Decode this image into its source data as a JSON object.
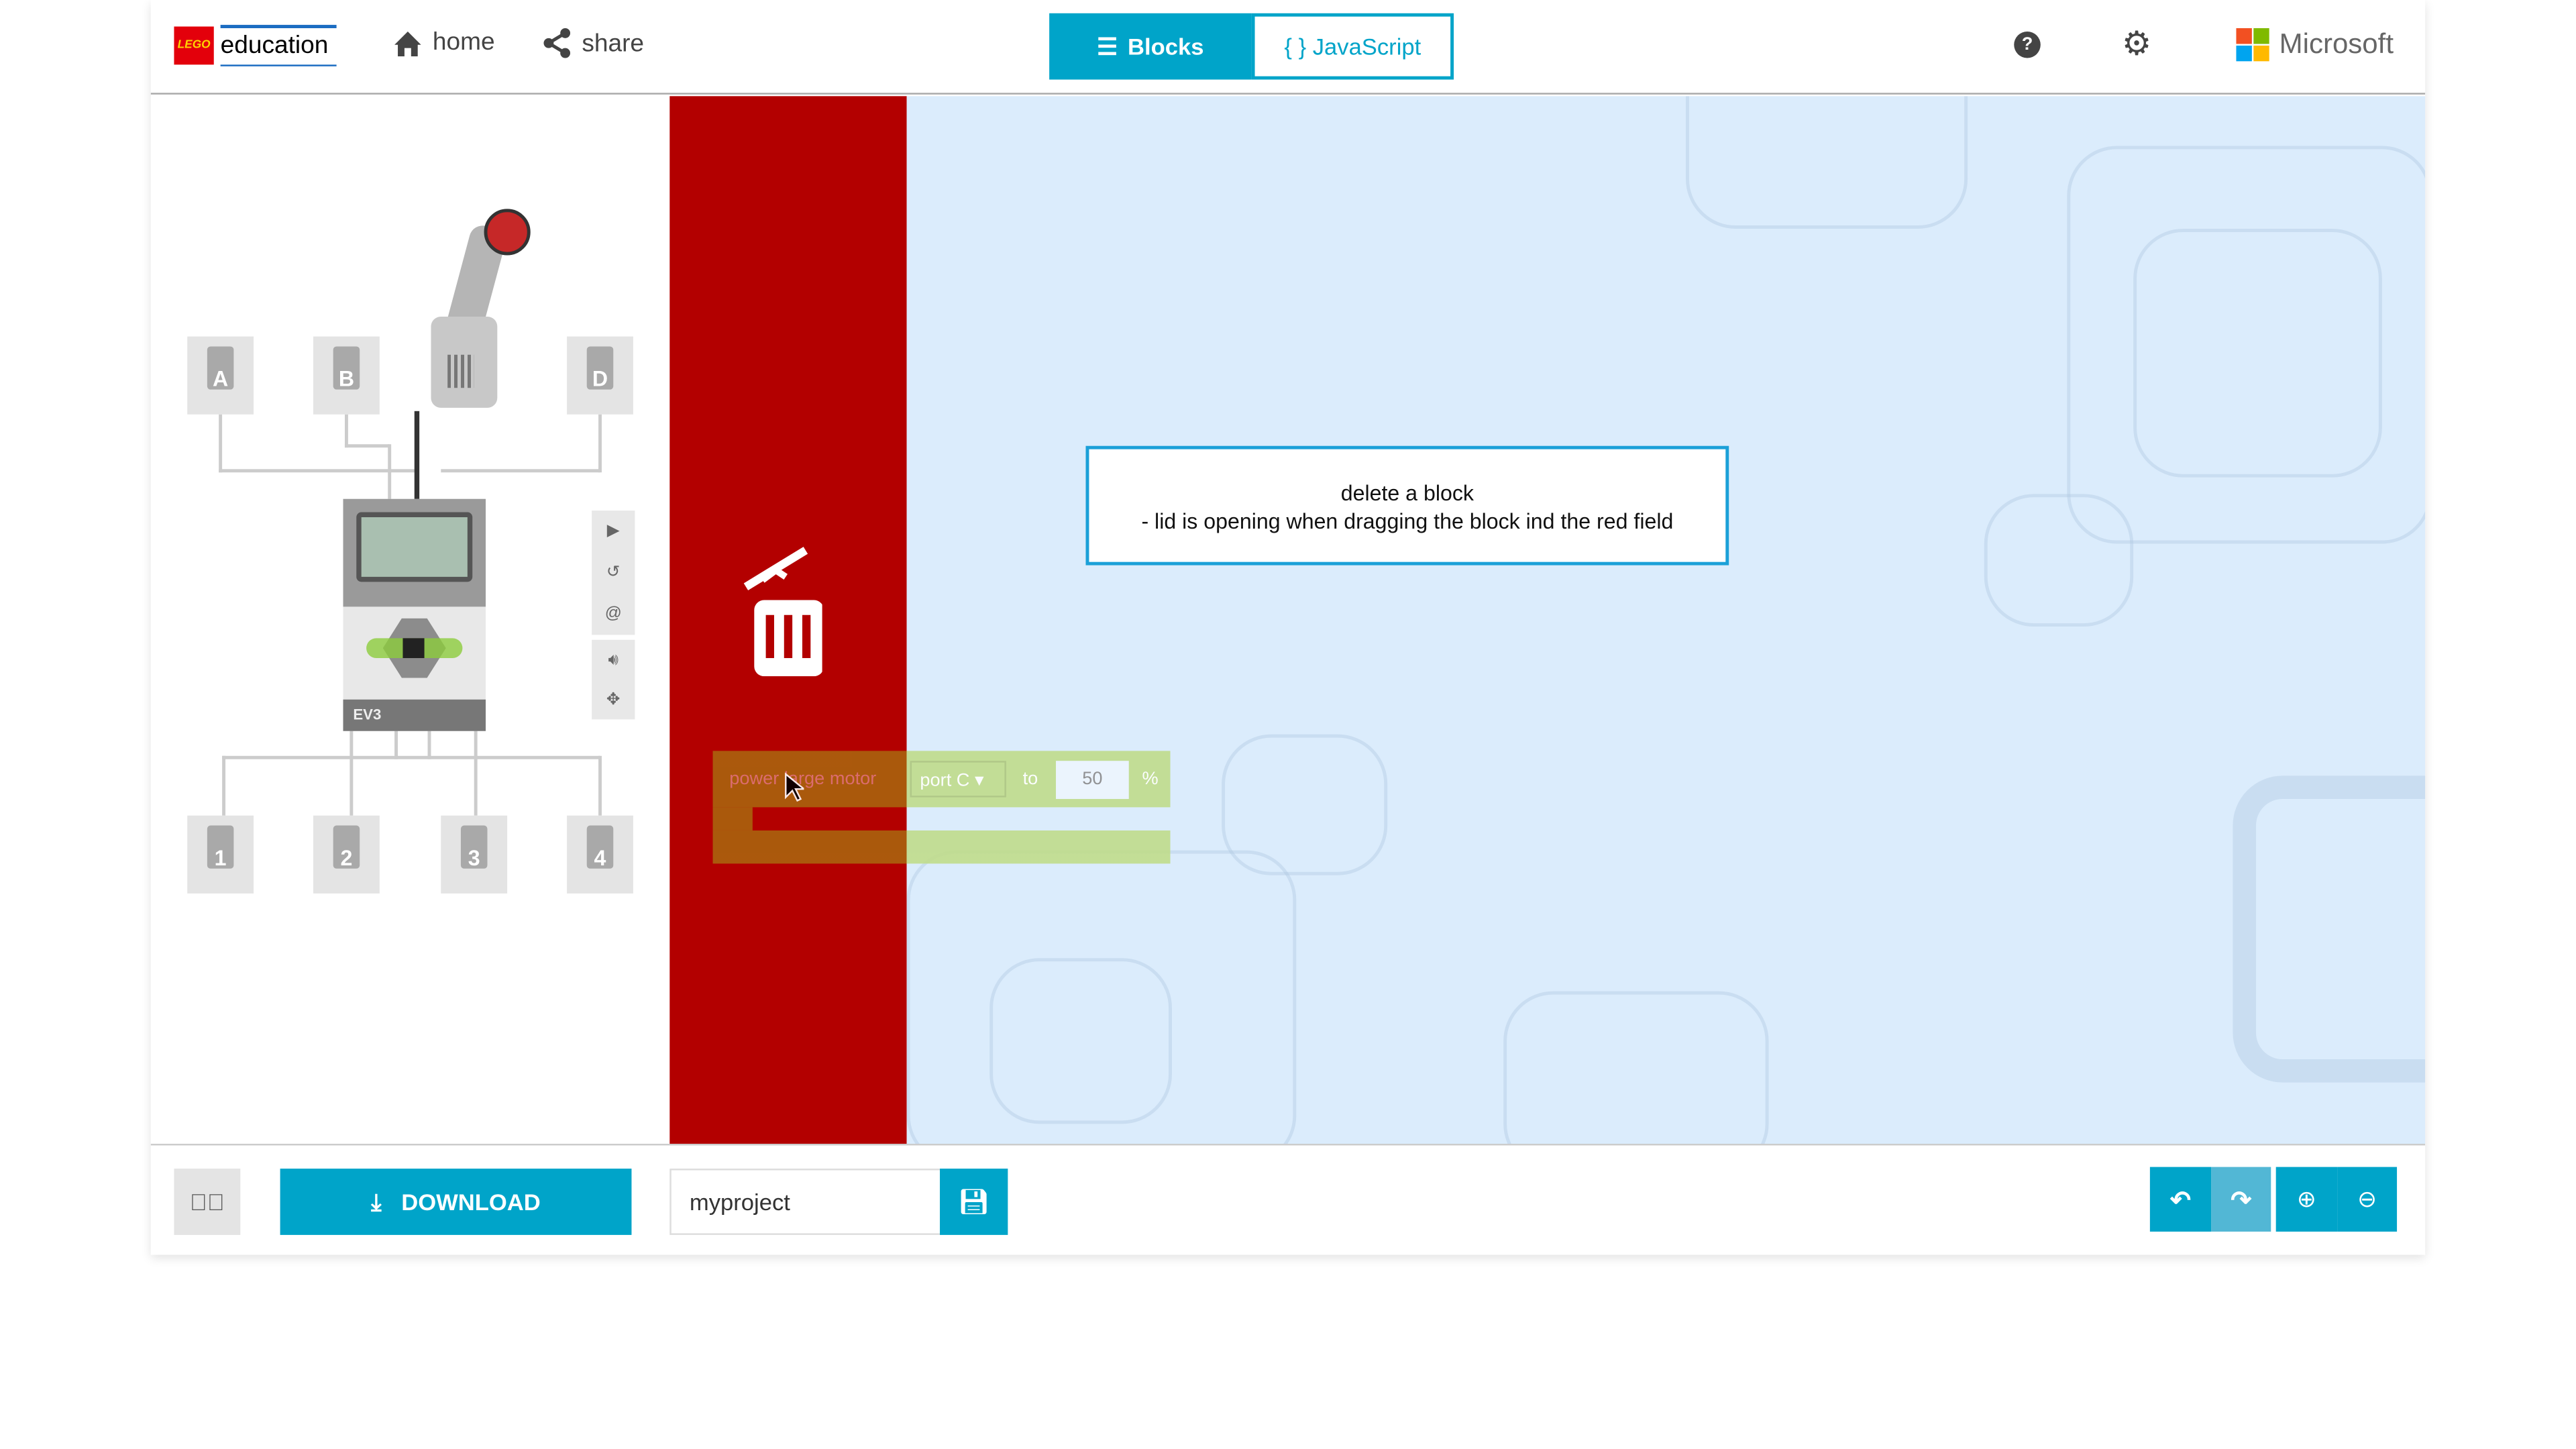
{
  "header": {
    "brand": "education",
    "logo_text": "LEGO",
    "home": "home",
    "share": "share",
    "tabs": [
      {
        "label": "Blocks",
        "active": true
      },
      {
        "label": "{ } JavaScript",
        "active": false
      }
    ],
    "microsoft": "Microsoft",
    "icons": [
      "home-icon",
      "share-icon",
      "help-icon",
      "gear-icon"
    ]
  },
  "simulator": {
    "ports_top": [
      "A",
      "B",
      "D"
    ],
    "ports_bottom": [
      "1",
      "2",
      "3",
      "4"
    ],
    "brick_label": "EV3",
    "controls": [
      "play-icon",
      "restart-icon",
      "slow-motion-icon",
      "sound-icon",
      "fullscreen-icon"
    ]
  },
  "tooltip": {
    "line1": "delete a block",
    "line2": "- lid is opening when dragging the block ind the red field"
  },
  "block": {
    "text": "power large motor",
    "port": "port C",
    "to": "to",
    "value": "50",
    "unit": "%"
  },
  "bottom": {
    "download": "DOWNLOAD",
    "project_name": "myproject"
  },
  "colors": {
    "accent": "#00a4c9",
    "trash": "#b30000",
    "workspace": "#dbecfc",
    "block": "#a5cf5a"
  }
}
